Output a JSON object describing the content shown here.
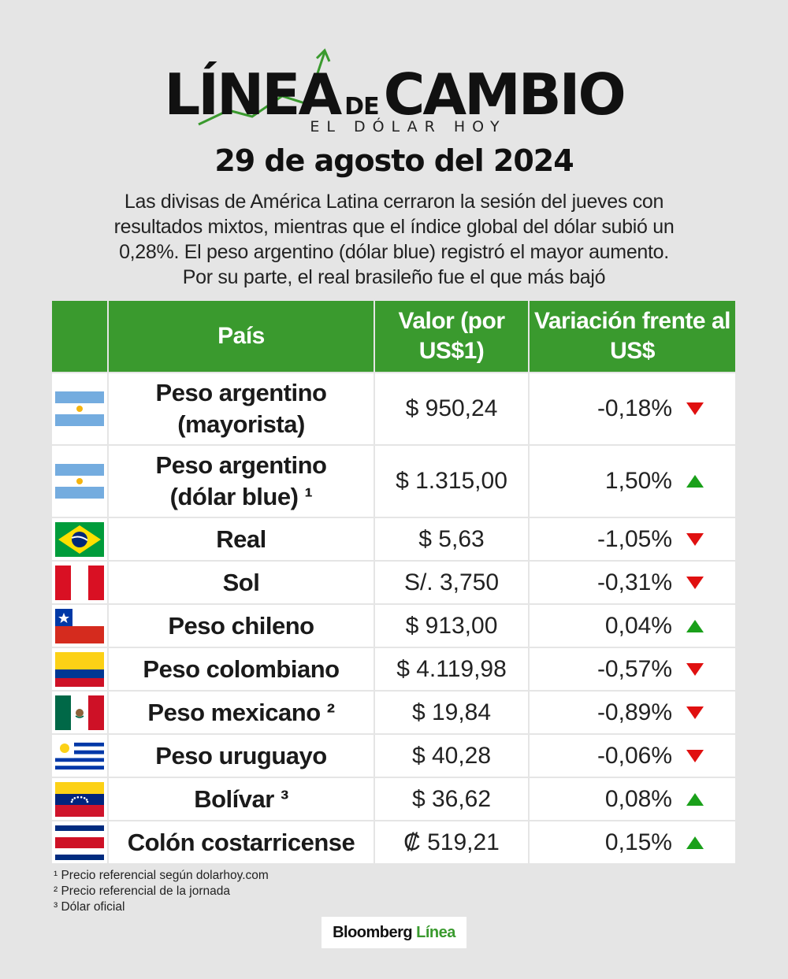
{
  "header": {
    "logo_word1": "LÍNEA",
    "logo_de": "DE",
    "logo_word2": "CAMBIO",
    "logo_sub": "EL DÓLAR HOY",
    "date": "29 de agosto del 2024",
    "intro": "Las divisas de América Latina cerraron la sesión del jueves con resultados mixtos, mientras que el índice global del dólar subió un 0,28%. El peso argentino (dólar blue) registró el mayor aumento. Por su parte, el real brasileño fue el que más bajó"
  },
  "table": {
    "headers": {
      "country": "País",
      "value": "Valor (por US$1)",
      "variation": "Variación frente al US$"
    },
    "rows": [
      {
        "flag": "argentina-flag",
        "name": "Peso argentino (mayorista)",
        "value": "$ 950,24",
        "variation": "-0,18%",
        "direction": "down"
      },
      {
        "flag": "argentina-flag",
        "name": "Peso argentino (dólar blue) ¹",
        "value": "$ 1.315,00",
        "variation": "1,50%",
        "direction": "up"
      },
      {
        "flag": "brazil-flag",
        "name": "Real",
        "value": "$ 5,63",
        "variation": "-1,05%",
        "direction": "down"
      },
      {
        "flag": "peru-flag",
        "name": "Sol",
        "value": "S/. 3,750",
        "variation": "-0,31%",
        "direction": "down"
      },
      {
        "flag": "chile-flag",
        "name": "Peso chileno",
        "value": "$ 913,00",
        "variation": "0,04%",
        "direction": "up"
      },
      {
        "flag": "colombia-flag",
        "name": "Peso colombiano",
        "value": "$ 4.119,98",
        "variation": "-0,57%",
        "direction": "down"
      },
      {
        "flag": "mexico-flag",
        "name": "Peso mexicano ²",
        "value": "$ 19,84",
        "variation": "-0,89%",
        "direction": "down"
      },
      {
        "flag": "uruguay-flag",
        "name": "Peso uruguayo",
        "value": "$ 40,28",
        "variation": "-0,06%",
        "direction": "down"
      },
      {
        "flag": "venezuela-flag",
        "name": "Bolívar ³",
        "value": "$ 36,62",
        "variation": "0,08%",
        "direction": "up"
      },
      {
        "flag": "costa-rica-flag",
        "name": "Colón costarricense",
        "value": "₡ 519,21",
        "variation": "0,15%",
        "direction": "up"
      }
    ]
  },
  "notes": [
    "¹ Precio referencial según dolarhoy.com",
    "² Precio referencial de la jornada",
    "³ Dólar oficial"
  ],
  "brand": {
    "part1": "Bloomberg",
    "part2": "Línea"
  },
  "colors": {
    "header_green": "#3a9a2e",
    "down_red": "#e01010",
    "up_green": "#1aa01a"
  }
}
